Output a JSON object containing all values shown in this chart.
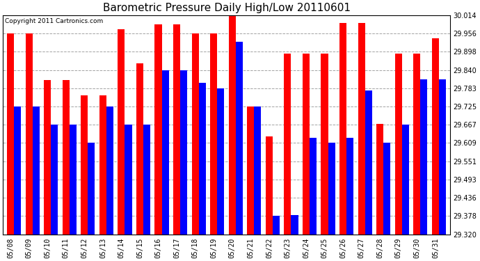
{
  "title": "Barometric Pressure Daily High/Low 20110601",
  "copyright_text": "Copyright 2011 Cartronics.com",
  "dates": [
    "05/08",
    "05/09",
    "05/10",
    "05/11",
    "05/12",
    "05/13",
    "05/14",
    "05/15",
    "05/16",
    "05/17",
    "05/18",
    "05/19",
    "05/20",
    "05/21",
    "05/22",
    "05/23",
    "05/24",
    "05/25",
    "05/26",
    "05/27",
    "05/28",
    "05/29",
    "05/30",
    "05/31"
  ],
  "highs": [
    29.956,
    29.956,
    29.808,
    29.808,
    29.76,
    29.76,
    29.97,
    29.862,
    29.985,
    29.985,
    29.956,
    29.956,
    30.014,
    29.725,
    29.63,
    29.892,
    29.892,
    29.892,
    29.99,
    29.99,
    29.67,
    29.892,
    29.892,
    29.94
  ],
  "lows": [
    29.725,
    29.725,
    29.667,
    29.667,
    29.609,
    29.725,
    29.667,
    29.667,
    29.84,
    29.84,
    29.8,
    29.783,
    29.93,
    29.725,
    29.378,
    29.38,
    29.625,
    29.609,
    29.625,
    29.775,
    29.609,
    29.667,
    29.81,
    29.81
  ],
  "ymin": 29.32,
  "ymax": 30.014,
  "yticks": [
    29.32,
    29.378,
    29.436,
    29.493,
    29.551,
    29.609,
    29.667,
    29.725,
    29.783,
    29.84,
    29.898,
    29.956,
    30.014
  ],
  "high_color": "#ff0000",
  "low_color": "#0000ff",
  "background_color": "#ffffff",
  "grid_color": "#999999",
  "title_fontsize": 11,
  "tick_fontsize": 7,
  "bar_width": 0.38
}
